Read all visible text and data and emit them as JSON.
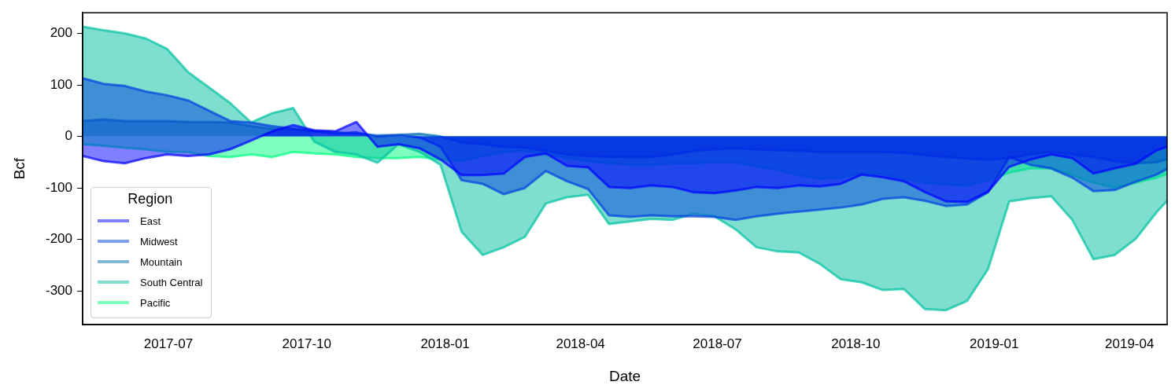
{
  "chart_data": {
    "type": "area",
    "xlabel": "Date",
    "ylabel": "Bcf",
    "legend_title": "Region",
    "legend": "bottom left",
    "grid": false,
    "x": [
      "2017-05-05",
      "2017-05-19",
      "2017-06-02",
      "2017-06-16",
      "2017-06-30",
      "2017-07-14",
      "2017-07-28",
      "2017-08-11",
      "2017-08-25",
      "2017-09-08",
      "2017-09-22",
      "2017-10-06",
      "2017-10-20",
      "2017-11-03",
      "2017-11-17",
      "2017-12-01",
      "2017-12-15",
      "2017-12-29",
      "2018-01-12",
      "2018-01-26",
      "2018-02-09",
      "2018-02-23",
      "2018-03-09",
      "2018-03-23",
      "2018-04-06",
      "2018-04-20",
      "2018-05-04",
      "2018-05-18",
      "2018-06-01",
      "2018-06-15",
      "2018-06-29",
      "2018-07-13",
      "2018-07-27",
      "2018-08-10",
      "2018-08-24",
      "2018-09-07",
      "2018-09-21",
      "2018-10-05",
      "2018-10-19",
      "2018-11-02",
      "2018-11-16",
      "2018-11-30",
      "2018-12-14",
      "2018-12-28",
      "2019-01-11",
      "2019-01-25",
      "2019-02-08",
      "2019-02-22",
      "2019-03-08",
      "2019-03-22",
      "2019-04-05",
      "2019-04-19",
      "2019-04-26"
    ],
    "xlim": [
      "2017-05-05",
      "2019-04-26"
    ],
    "xticks": [
      "2017-07",
      "2017-10",
      "2018-01",
      "2018-04",
      "2018-07",
      "2018-10",
      "2019-01",
      "2019-04"
    ],
    "ylim": [
      -365,
      240
    ],
    "yticks": [
      -300,
      -200,
      -100,
      0,
      100,
      200
    ],
    "series": [
      {
        "name": "East",
        "color": "#0000ff",
        "values": [
          -38,
          -48,
          -52,
          -42,
          -35,
          -38,
          -35,
          -25,
          -8,
          10,
          22,
          12,
          10,
          28,
          -20,
          -15,
          -23,
          -45,
          -75,
          -75,
          -72,
          -40,
          -33,
          -57,
          -60,
          -98,
          -100,
          -95,
          -98,
          -108,
          -110,
          -105,
          -98,
          -100,
          -95,
          -97,
          -92,
          -74,
          -79,
          -87,
          -108,
          -126,
          -127,
          -107,
          -59,
          -45,
          -35,
          -42,
          -72,
          -62,
          -53,
          -27,
          -20
        ]
      },
      {
        "name": "Midwest",
        "color": "#0040e0",
        "values": [
          113,
          102,
          98,
          87,
          80,
          70,
          50,
          30,
          27,
          20,
          15,
          10,
          5,
          8,
          0,
          3,
          -2,
          -20,
          -85,
          -92,
          -112,
          -100,
          -67,
          -87,
          -102,
          -153,
          -156,
          -153,
          -155,
          -155,
          -156,
          -162,
          -155,
          -150,
          -146,
          -142,
          -138,
          -132,
          -121,
          -118,
          -125,
          -135,
          -132,
          -108,
          -40,
          -55,
          -62,
          -80,
          -106,
          -104,
          -88,
          -74,
          -63
        ]
      },
      {
        "name": "Mountain",
        "color": "#0070b0",
        "values": [
          30,
          33,
          30,
          30,
          30,
          28,
          28,
          27,
          20,
          15,
          13,
          10,
          8,
          5,
          2,
          3,
          5,
          0,
          -12,
          -15,
          -20,
          -22,
          -28,
          -35,
          -38,
          -40,
          -40,
          -40,
          -35,
          -28,
          -25,
          -23,
          -25,
          -27,
          -28,
          -30,
          -30,
          -30,
          -30,
          -32,
          -36,
          -40,
          -43,
          -45,
          -42,
          -35,
          -30,
          -35,
          -40,
          -48,
          -52,
          -50,
          -44
        ]
      },
      {
        "name": "South Central",
        "color": "#00c0a0",
        "values": [
          213,
          206,
          200,
          190,
          170,
          125,
          95,
          65,
          27,
          45,
          55,
          -10,
          -30,
          -35,
          -51,
          -15,
          -30,
          -55,
          -185,
          -230,
          -215,
          -195,
          -130,
          -118,
          -113,
          -170,
          -165,
          -160,
          -162,
          -150,
          -155,
          -180,
          -215,
          -223,
          -225,
          -247,
          -277,
          -283,
          -298,
          -296,
          -335,
          -337,
          -319,
          -257,
          -126,
          -120,
          -116,
          -162,
          -238,
          -230,
          -199,
          -147,
          -125
        ]
      },
      {
        "name": "Pacific",
        "color": "#00ff80",
        "values": [
          -15,
          -18,
          -22,
          -25,
          -30,
          -30,
          -38,
          -40,
          -35,
          -40,
          -30,
          -33,
          -35,
          -40,
          -42,
          -42,
          -40,
          -45,
          -48,
          -38,
          -30,
          -28,
          -35,
          -42,
          -48,
          -52,
          -55,
          -55,
          -52,
          -52,
          -50,
          -50,
          -58,
          -65,
          -75,
          -82,
          -80,
          -72,
          -73,
          -82,
          -90,
          -93,
          -95,
          -85,
          -70,
          -62,
          -62,
          -75,
          -90,
          -99,
          -90,
          -80,
          -73
        ]
      }
    ]
  }
}
